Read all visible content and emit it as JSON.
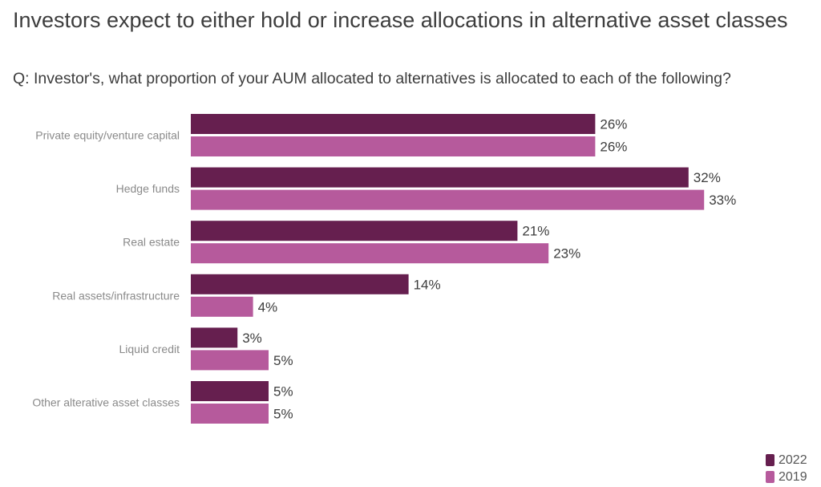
{
  "title": "Investors expect to either hold or increase allocations in alternative asset classes",
  "subtitle": "Q: Investor's, what proportion of your AUM allocated to alternatives is allocated to each of the following?",
  "colors": {
    "2022": "#661f4f",
    "2019": "#b65a9c"
  },
  "chart_data": {
    "type": "bar",
    "orientation": "horizontal",
    "categories": [
      "Private equity/venture capital",
      "Hedge funds",
      "Real estate",
      "Real assets/infrastructure",
      "Liquid credit",
      "Other alterative asset classes"
    ],
    "series": [
      {
        "name": "2022",
        "values": [
          26,
          32,
          21,
          14,
          3,
          5
        ]
      },
      {
        "name": "2019",
        "values": [
          26,
          33,
          23,
          4,
          5,
          5
        ]
      }
    ],
    "value_suffix": "%",
    "xlim": [
      0,
      35
    ],
    "grid": false,
    "legend_position": "bottom-right"
  }
}
